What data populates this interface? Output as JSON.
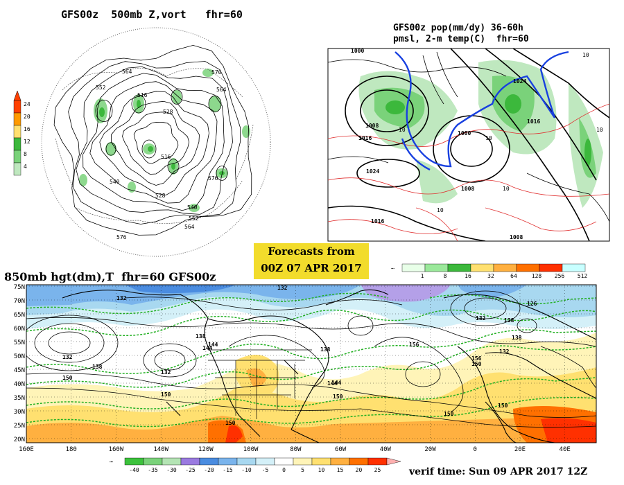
{
  "panel_500mb": {
    "title": "GFS00z  500mb Z,vort   fhr=60",
    "scale_ticks": [
      "24",
      "20",
      "16",
      "12",
      "8",
      "4"
    ],
    "scale_colors": [
      "#ff4000",
      "#ff9a00",
      "#ffe070",
      "#3cb83c",
      "#7ad27a",
      "#bfe8bf"
    ],
    "contour_labels": [
      "564",
      "570",
      "564",
      "552",
      "516",
      "528",
      "516",
      "540",
      "528",
      "576",
      "540",
      "552",
      "564",
      "576"
    ]
  },
  "panel_pop": {
    "title_line1": "GFS00z pop(mm/dy) 36-60h",
    "title_line2": "pmsl, 2-m temp(C)  fhr=60",
    "pressure_labels": [
      "1000",
      "1008",
      "1016",
      "1024",
      "1016",
      "1000",
      "1024",
      "1008",
      "1016",
      "1008"
    ],
    "temp_labels": [
      "10",
      "10",
      "10",
      "10",
      "10",
      "10"
    ],
    "scale_ticks": [
      "1",
      "8",
      "16",
      "32",
      "64",
      "128",
      "256",
      "512"
    ],
    "scale_colors": [
      "#e8ffe8",
      "#9ae89a",
      "#3cb83c",
      "#ffe070",
      "#ffb040",
      "#ff7000",
      "#ff3000",
      "#c8ffff"
    ]
  },
  "forecast_box": {
    "line1": "Forecasts from",
    "line2": "00Z 07 APR 2017"
  },
  "panel_850mb": {
    "title": "850mb hgt(dm),T  fhr=60 GFS00z",
    "lat_labels": [
      "75N",
      "70N",
      "65N",
      "60N",
      "55N",
      "50N",
      "45N",
      "40N",
      "35N",
      "30N",
      "25N",
      "20N"
    ],
    "lon_labels": [
      "160E",
      "180",
      "160W",
      "140W",
      "120W",
      "100W",
      "80W",
      "60W",
      "40W",
      "20W",
      "0",
      "20E",
      "40E"
    ],
    "contour_labels": [
      "132",
      "132",
      "132",
      "138",
      "132",
      "144",
      "150",
      "138",
      "144",
      "150",
      "144",
      "150",
      "156",
      "150",
      "156",
      "138",
      "150",
      "144",
      "150",
      "126",
      "132",
      "138",
      "132",
      "150",
      "138"
    ],
    "scale_ticks": [
      "-40",
      "-35",
      "-30",
      "-25",
      "-20",
      "-15",
      "-10",
      "-5",
      "0",
      "5",
      "10",
      "15",
      "20",
      "25"
    ],
    "scale_colors": [
      "#3cc23c",
      "#7ad27a",
      "#b4e4b4",
      "#9a7ae0",
      "#4a8ce0",
      "#7ab4ec",
      "#a8d8f0",
      "#d4f0f8",
      "#ffffff",
      "#fff4b8",
      "#ffe070",
      "#ffb040",
      "#ff7000",
      "#ff3000"
    ]
  },
  "verif_time": "verif time: Sun 09 APR 2017 12Z",
  "colors": {
    "cold_blue": "#4a8ce0",
    "light_blue": "#a8d8f0",
    "warm_yellow": "#ffe070",
    "hot_orange": "#ff7000",
    "green_dash": "#22b022",
    "front_blue": "#1840e0",
    "temp_red": "#e03030"
  }
}
